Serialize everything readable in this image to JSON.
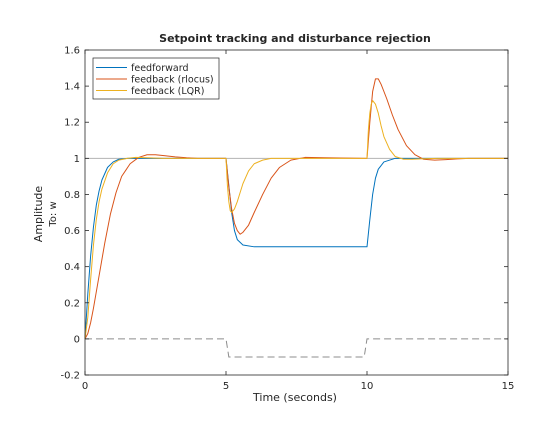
{
  "chart_data": {
    "type": "line",
    "title": "Setpoint tracking and disturbance rejection",
    "xlabel": "Time (seconds)",
    "ylabel": "Amplitude",
    "ylabel_sub": "To: w",
    "xlim": [
      0,
      15
    ],
    "ylim": [
      -0.2,
      1.6
    ],
    "xticks": [
      0,
      5,
      10,
      15
    ],
    "xtick_labels": [
      "0",
      "5",
      "10",
      "15"
    ],
    "yticks": [
      -0.2,
      0,
      0.2,
      0.4,
      0.6,
      0.8,
      1,
      1.2,
      1.4,
      1.6
    ],
    "ytick_labels": [
      "-0.2",
      "0",
      "0.2",
      "0.4",
      "0.6",
      "0.8",
      "1",
      "1.2",
      "1.4",
      "1.6"
    ],
    "grid": false,
    "legend_position": "top-left",
    "reference_lines": [
      {
        "kind": "setpoint",
        "color": "#b3b3b3",
        "x": [
          0,
          15
        ],
        "y": [
          1,
          1
        ]
      },
      {
        "kind": "disturbance",
        "color": "#8c8c8c",
        "dashed": true,
        "x": [
          0,
          5.0,
          5.1,
          9.9,
          10.0,
          15
        ],
        "y": [
          0,
          0,
          -0.1,
          -0.1,
          0,
          0
        ]
      }
    ],
    "series": [
      {
        "name": "feedforward",
        "color": "#0072bd",
        "x": [
          0,
          0.1,
          0.2,
          0.3,
          0.4,
          0.5,
          0.6,
          0.8,
          1.0,
          1.2,
          1.5,
          2.0,
          2.5,
          3.0,
          4.0,
          4.99,
          5.0,
          5.1,
          5.2,
          5.3,
          5.4,
          5.6,
          6.0,
          7.0,
          8.0,
          9.0,
          9.99,
          10.0,
          10.1,
          10.2,
          10.3,
          10.4,
          10.6,
          11.0,
          11.5,
          12.0,
          13.0,
          14.0,
          15.0
        ],
        "y": [
          0,
          0.25,
          0.46,
          0.62,
          0.74,
          0.82,
          0.88,
          0.95,
          0.98,
          0.995,
          1.0,
          1.0,
          1.0,
          1.0,
          1.0,
          1.0,
          1.0,
          0.85,
          0.7,
          0.6,
          0.55,
          0.52,
          0.51,
          0.51,
          0.51,
          0.51,
          0.51,
          0.51,
          0.66,
          0.8,
          0.89,
          0.94,
          0.98,
          1.0,
          1.0,
          1.0,
          1.0,
          1.0,
          1.0
        ]
      },
      {
        "name": "feedback (rlocus)",
        "color": "#d95319",
        "x": [
          0,
          0.1,
          0.2,
          0.3,
          0.5,
          0.7,
          0.9,
          1.1,
          1.3,
          1.6,
          1.9,
          2.2,
          2.5,
          2.8,
          3.2,
          3.6,
          4.0,
          4.99,
          5.0,
          5.1,
          5.2,
          5.3,
          5.4,
          5.5,
          5.6,
          5.8,
          6.0,
          6.3,
          6.6,
          6.9,
          7.3,
          7.8,
          8.5,
          9.99,
          10.0,
          10.1,
          10.2,
          10.3,
          10.4,
          10.5,
          10.7,
          10.9,
          11.1,
          11.4,
          11.7,
          12.0,
          12.4,
          12.8,
          13.2,
          13.6,
          14.0,
          15.0
        ],
        "y": [
          0,
          0.03,
          0.09,
          0.17,
          0.35,
          0.53,
          0.69,
          0.81,
          0.9,
          0.97,
          1.005,
          1.02,
          1.02,
          1.015,
          1.008,
          1.003,
          1.0,
          1.0,
          1.0,
          0.84,
          0.72,
          0.64,
          0.6,
          0.58,
          0.59,
          0.63,
          0.7,
          0.8,
          0.89,
          0.95,
          0.99,
          1.005,
          1.003,
          1.0,
          1.0,
          1.2,
          1.37,
          1.44,
          1.44,
          1.41,
          1.33,
          1.24,
          1.16,
          1.07,
          1.02,
          0.995,
          0.99,
          0.993,
          0.997,
          1.0,
          1.0,
          1.0
        ]
      },
      {
        "name": "feedback (LQR)",
        "color": "#edb120",
        "x": [
          0,
          0.1,
          0.2,
          0.3,
          0.4,
          0.5,
          0.6,
          0.8,
          1.0,
          1.2,
          1.5,
          1.8,
          2.2,
          2.8,
          3.5,
          4.99,
          5.0,
          5.05,
          5.1,
          5.15,
          5.2,
          5.3,
          5.4,
          5.5,
          5.6,
          5.8,
          6.0,
          6.3,
          6.6,
          7.0,
          8.0,
          9.99,
          10.0,
          10.05,
          10.1,
          10.15,
          10.2,
          10.3,
          10.4,
          10.5,
          10.6,
          10.8,
          11.0,
          11.3,
          11.6,
          12.0,
          12.5,
          13.0,
          14.0,
          15.0
        ],
        "y": [
          0,
          0.12,
          0.33,
          0.52,
          0.66,
          0.76,
          0.83,
          0.92,
          0.97,
          0.99,
          1.0,
          1.005,
          1.003,
          1.0,
          1.0,
          1.0,
          1.0,
          0.85,
          0.76,
          0.71,
          0.7,
          0.72,
          0.76,
          0.81,
          0.86,
          0.93,
          0.97,
          0.99,
          1.0,
          1.0,
          1.0,
          1.0,
          1.0,
          1.16,
          1.25,
          1.3,
          1.32,
          1.3,
          1.25,
          1.18,
          1.12,
          1.05,
          1.01,
          0.995,
          0.995,
          0.998,
          1.0,
          1.0,
          1.0,
          1.0
        ]
      }
    ]
  }
}
